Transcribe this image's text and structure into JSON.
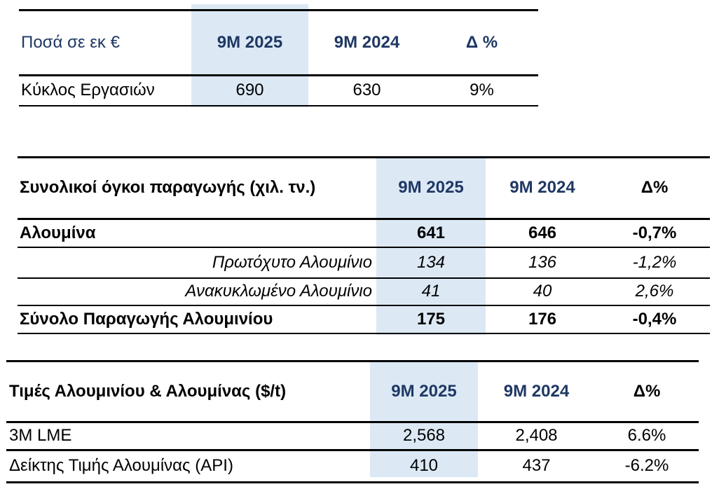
{
  "colors": {
    "header_navy": "#1f3864",
    "highlight_blue": "#dce9f5",
    "rule_black": "#000000"
  },
  "revenue_table": {
    "unit_label": "Ποσά σε εκ €",
    "col_2025": "9M 2025",
    "col_2024": "9M 2024",
    "col_delta": "Δ %",
    "rows": [
      {
        "label": "Κύκλος Εργασιών",
        "v2025": "690",
        "v2024": "630",
        "delta": "9%"
      }
    ]
  },
  "production_table": {
    "title": "Συνολικοί όγκοι παραγωγής (χιλ. τν.)",
    "col_2025": "9M 2025",
    "col_2024": "9M 2024",
    "col_delta": "Δ%",
    "rows": [
      {
        "label": "Αλουμίνα",
        "v2025": "641",
        "v2024": "646",
        "delta": "-0,7%"
      },
      {
        "label": "Πρωτόχυτο Αλουμίνιο",
        "v2025": "134",
        "v2024": "136",
        "delta": "-1,2%"
      },
      {
        "label": "Ανακυκλωμένο Αλουμίνιο",
        "v2025": "41",
        "v2024": "40",
        "delta": "2,6%"
      },
      {
        "label": "Σύνολο Παραγωγής Αλουμινίου",
        "v2025": "175",
        "v2024": "176",
        "delta": "-0,4%"
      }
    ]
  },
  "prices_table": {
    "title": "Τιμές Αλουμινίου & Αλουμίνας ($/t)",
    "col_2025": "9M 2025",
    "col_2024": "9M 2024",
    "col_delta": "Δ%",
    "rows": [
      {
        "label": "3M LME",
        "v2025": "2,568",
        "v2024": "2,408",
        "delta": "6.6%"
      },
      {
        "label": "Δείκτης Τιμής Αλουμίνας (API)",
        "v2025": "410",
        "v2024": "437",
        "delta": "-6.2%"
      }
    ]
  }
}
